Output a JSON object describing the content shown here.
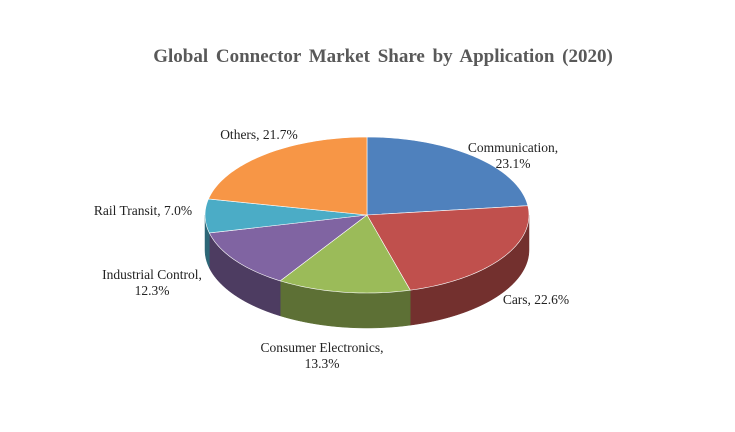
{
  "chart_data": {
    "type": "pie3d",
    "title": "Global Connector Market Share by Application (2020)",
    "labels": [
      "Communication, 23.1%",
      "Cars, 22.6%",
      "Consumer Electronics, 13.3%",
      "Industrial Control, 12.3%",
      "Rail Transit, 7.0%",
      "Others, 21.7%"
    ],
    "values": [
      23.1,
      22.6,
      13.3,
      12.3,
      7.0,
      21.7
    ],
    "colors": [
      "#4f81bd",
      "#c0504d",
      "#9bbb59",
      "#8064a2",
      "#4bacc6",
      "#f79646"
    ]
  }
}
